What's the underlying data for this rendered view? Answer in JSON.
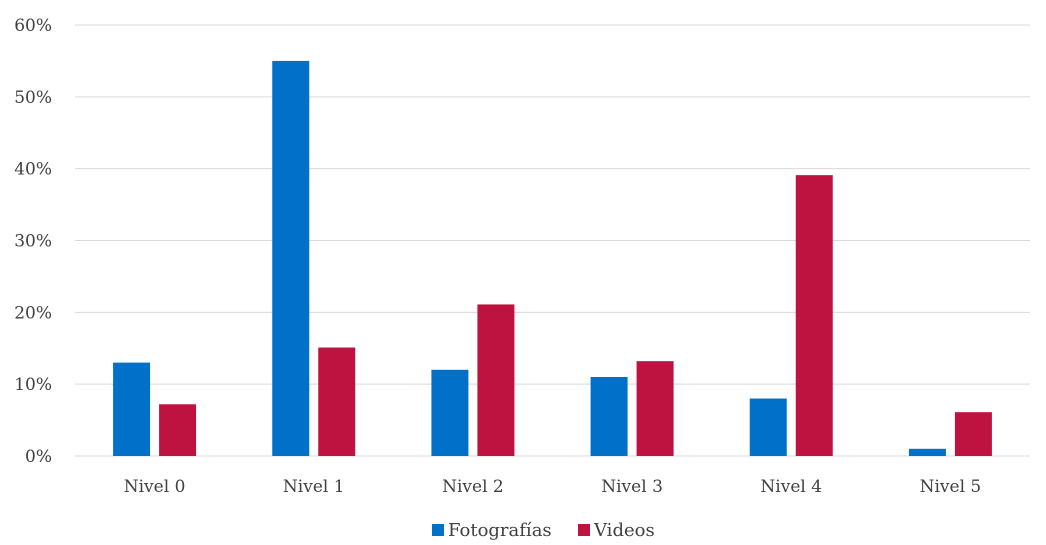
{
  "chart_data": {
    "type": "bar",
    "title": "",
    "xlabel": "",
    "ylabel": "",
    "categories": [
      "Nivel 0",
      "Nivel 1",
      "Nivel 2",
      "Nivel 3",
      "Nivel 4",
      "Nivel 5"
    ],
    "series": [
      {
        "name": "Fotografías",
        "color": "#0070c8",
        "values": [
          13,
          55,
          12,
          11,
          8,
          1
        ]
      },
      {
        "name": "Videos",
        "color": "#be1340",
        "values": [
          7.2,
          15.1,
          21.1,
          13.2,
          39.1,
          6.1
        ]
      }
    ],
    "ylim": [
      0,
      60
    ],
    "yticks": [
      0,
      10,
      20,
      30,
      40,
      50,
      60
    ],
    "ytick_labels": [
      "0%",
      "10%",
      "20%",
      "30%",
      "40%",
      "50%",
      "60%"
    ],
    "grid": true,
    "legend": "bottom-center"
  }
}
